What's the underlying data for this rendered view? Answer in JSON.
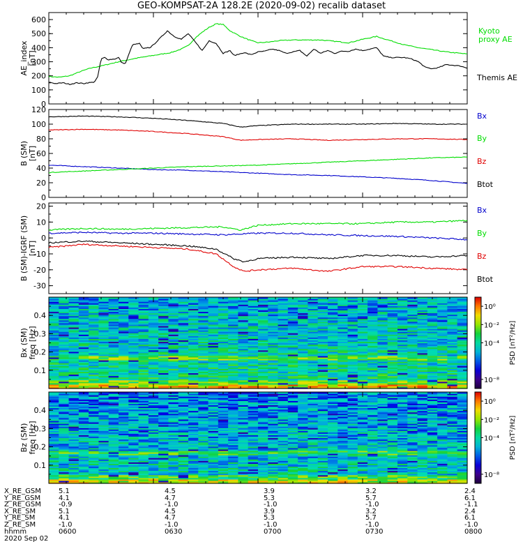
{
  "title": "GEO-KOMPSAT-2A 128.2E (2020-09-02) recalib dataset",
  "time_labels": [
    "0600",
    "0630",
    "0700",
    "0730",
    "0800"
  ],
  "date_label": "2020 Sep 02",
  "ephemeris": {
    "rows": [
      {
        "name": "X_RE_GSM",
        "values": [
          "5.1",
          "4.5",
          "3.9",
          "3.2",
          "2.4"
        ]
      },
      {
        "name": "Y_RE_GSM",
        "values": [
          "4.1",
          "4.7",
          "5.3",
          "5.7",
          "6.1"
        ]
      },
      {
        "name": "Z_RE_GSM",
        "values": [
          "-0.9",
          "-1.0",
          "-1.0",
          "-1.0",
          "-1.1"
        ]
      },
      {
        "name": "X_RE_SM",
        "values": [
          "5.1",
          "4.5",
          "3.9",
          "3.2",
          "2.4"
        ]
      },
      {
        "name": "Y_RE_SM",
        "values": [
          "4.1",
          "4.7",
          "5.3",
          "5.7",
          "6.1"
        ]
      },
      {
        "name": "Z_RE_SM",
        "values": [
          "-1.0",
          "-1.0",
          "-1.0",
          "-1.0",
          "-1.0"
        ]
      },
      {
        "name": "hhmm",
        "values": [
          "0600",
          "0630",
          "0700",
          "0730",
          "0800"
        ]
      }
    ]
  },
  "colors": {
    "black": "#000000",
    "green": "#00dd00",
    "red": "#e00000",
    "blue": "#0000cc"
  },
  "chart_data": [
    {
      "type": "line",
      "ylabel_lines": [
        "AE_index",
        "[nT]"
      ],
      "ylim": [
        0,
        650
      ],
      "yticks": [
        0,
        100,
        200,
        300,
        400,
        500,
        600
      ],
      "x_unit": "minutes after 0600 UT",
      "xlim": [
        0,
        120
      ],
      "series": [
        {
          "name": "Kyoto proxy AE",
          "name_lines": [
            "Kyoto",
            "proxy AE"
          ],
          "color": "#00dd00",
          "x": [
            0,
            3,
            6,
            9,
            12,
            15,
            20,
            25,
            30,
            35,
            38,
            40,
            42,
            44,
            46,
            48,
            50,
            52,
            55,
            58,
            60,
            63,
            66,
            70,
            74,
            78,
            82,
            86,
            90,
            94,
            98,
            102,
            106,
            110,
            114,
            118,
            120
          ],
          "y": [
            195,
            190,
            200,
            230,
            255,
            270,
            300,
            325,
            345,
            365,
            390,
            415,
            470,
            510,
            545,
            570,
            565,
            520,
            480,
            450,
            435,
            440,
            450,
            455,
            455,
            455,
            445,
            435,
            460,
            480,
            450,
            420,
            400,
            385,
            370,
            360,
            355
          ]
        },
        {
          "name": "Themis AE",
          "name_lines": [
            "Themis AE"
          ],
          "color": "#000000",
          "x": [
            0,
            2,
            4,
            6,
            8,
            9,
            10,
            11,
            13,
            14,
            15,
            16,
            17,
            19,
            20,
            21,
            22,
            24,
            26,
            27,
            28,
            29,
            30,
            32,
            34,
            35,
            36,
            38,
            40,
            42,
            44,
            46,
            48,
            50,
            52,
            53,
            54,
            56,
            58,
            60,
            62,
            64,
            66,
            68,
            70,
            72,
            74,
            76,
            78,
            80,
            82,
            84,
            86,
            88,
            90,
            92,
            94,
            96,
            98,
            100,
            102,
            104,
            106,
            108,
            110,
            112,
            114,
            116,
            118,
            120
          ],
          "y": [
            155,
            145,
            150,
            140,
            150,
            148,
            145,
            150,
            155,
            190,
            320,
            330,
            315,
            320,
            330,
            290,
            290,
            420,
            430,
            390,
            400,
            400,
            420,
            470,
            520,
            500,
            480,
            460,
            500,
            440,
            380,
            450,
            430,
            360,
            380,
            345,
            350,
            365,
            350,
            370,
            375,
            390,
            380,
            360,
            370,
            380,
            340,
            390,
            360,
            380,
            360,
            375,
            375,
            390,
            380,
            390,
            400,
            340,
            330,
            330,
            330,
            320,
            300,
            260,
            250,
            260,
            280,
            275,
            270,
            255
          ]
        }
      ]
    },
    {
      "type": "line",
      "ylabel_lines": [
        "B (SM)",
        "[nT]"
      ],
      "ylim": [
        0,
        120
      ],
      "yticks": [
        0,
        20,
        40,
        60,
        80,
        100,
        120
      ],
      "xlim": [
        0,
        120
      ],
      "series": [
        {
          "name": "Bx",
          "color": "#0000cc",
          "x": [
            0,
            10,
            20,
            30,
            40,
            50,
            60,
            70,
            80,
            90,
            100,
            110,
            120
          ],
          "y": [
            44,
            42,
            40,
            38,
            37,
            35,
            33,
            31,
            30,
            28,
            26,
            23,
            19
          ]
        },
        {
          "name": "By",
          "color": "#00dd00",
          "x": [
            0,
            10,
            20,
            30,
            40,
            50,
            60,
            70,
            80,
            90,
            100,
            110,
            120
          ],
          "y": [
            34,
            36,
            38,
            40,
            42,
            43,
            44,
            46,
            48,
            50,
            52,
            54,
            55
          ]
        },
        {
          "name": "Bz",
          "color": "#e00000",
          "x": [
            0,
            10,
            20,
            30,
            40,
            50,
            55,
            60,
            70,
            80,
            90,
            100,
            110,
            120
          ],
          "y": [
            92,
            93,
            92,
            90,
            87,
            83,
            78,
            79,
            80,
            78,
            79,
            80,
            80,
            79
          ]
        },
        {
          "name": "Btot",
          "color": "#000000",
          "x": [
            0,
            10,
            20,
            30,
            40,
            50,
            55,
            60,
            70,
            80,
            90,
            100,
            110,
            120
          ],
          "y": [
            110,
            111,
            110,
            108,
            105,
            101,
            96,
            98,
            100,
            100,
            100,
            101,
            100,
            100
          ]
        }
      ]
    },
    {
      "type": "line",
      "ylabel_lines": [
        "B (SM)-IGRF (SM)",
        "[nT]"
      ],
      "ylim": [
        -35,
        22
      ],
      "yticks": [
        -30,
        -20,
        -10,
        0,
        10,
        20
      ],
      "xlim": [
        0,
        120
      ],
      "series": [
        {
          "name": "Bx",
          "color": "#0000cc",
          "x": [
            0,
            10,
            20,
            30,
            40,
            50,
            60,
            70,
            80,
            90,
            100,
            110,
            120
          ],
          "y": [
            3,
            3.5,
            3,
            3,
            2.5,
            2,
            3,
            3,
            2,
            1.5,
            1,
            0,
            -1
          ]
        },
        {
          "name": "By",
          "color": "#00dd00",
          "x": [
            0,
            10,
            20,
            30,
            40,
            50,
            55,
            60,
            70,
            80,
            90,
            100,
            110,
            120
          ],
          "y": [
            5,
            6,
            5.5,
            6,
            6.5,
            7,
            5,
            8,
            9,
            9,
            9,
            10,
            10,
            11
          ]
        },
        {
          "name": "Bz",
          "color": "#e00000",
          "x": [
            0,
            10,
            20,
            30,
            40,
            48,
            53,
            56,
            60,
            70,
            80,
            90,
            100,
            110,
            120
          ],
          "y": [
            -6,
            -4,
            -5,
            -6,
            -7,
            -10,
            -18,
            -21,
            -20,
            -19,
            -21,
            -18,
            -18,
            -19,
            -20
          ]
        },
        {
          "name": "Btot",
          "color": "#000000",
          "x": [
            0,
            10,
            20,
            30,
            40,
            48,
            53,
            56,
            60,
            70,
            80,
            90,
            100,
            110,
            120
          ],
          "y": [
            -3,
            -2,
            -3,
            -4,
            -5,
            -7,
            -13,
            -15,
            -13,
            -12,
            -13,
            -11,
            -11,
            -12,
            -11
          ]
        }
      ]
    },
    {
      "type": "heatmap",
      "ylabel_lines": [
        "Bx (SM)",
        "freq [Hz]"
      ],
      "ylim": [
        0,
        0.5
      ],
      "yticks": [
        0.1,
        0.2,
        0.3,
        0.4
      ],
      "xlim": [
        0,
        120
      ],
      "colorbar_label": "PSD [nT²/Hz]",
      "colorbar_ticks": [
        "10⁰",
        "10⁻²",
        "10⁻⁴",
        "10⁻⁸"
      ],
      "colorbar_tick_values": [
        0,
        -2,
        -4,
        -8
      ]
    },
    {
      "type": "heatmap",
      "ylabel_lines": [
        "Bz (SM)",
        "freq [Hz]"
      ],
      "ylim": [
        0,
        0.5
      ],
      "yticks": [
        0.1,
        0.2,
        0.3,
        0.4
      ],
      "xlim": [
        0,
        120
      ],
      "colorbar_label": "PSD [nT²/Hz]",
      "colorbar_ticks": [
        "10⁰",
        "10⁻²",
        "10⁻⁴",
        "10⁻⁸"
      ],
      "colorbar_tick_values": [
        0,
        -2,
        -4,
        -8
      ]
    }
  ]
}
